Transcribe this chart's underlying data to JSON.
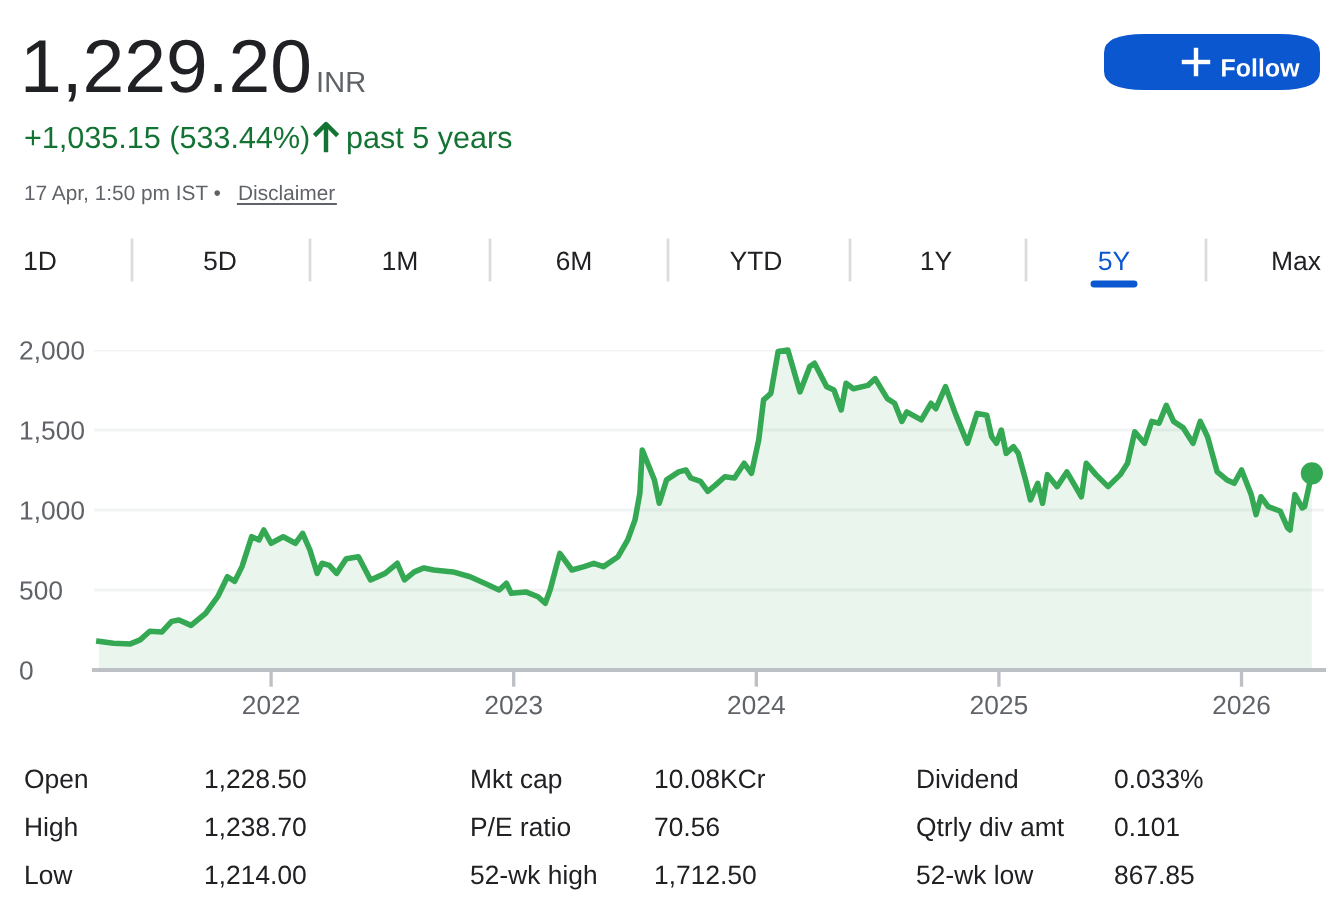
{
  "chart_data": {
    "type": "area",
    "title": "1,229.20",
    "annotations": [
      "INR",
      "+1,035.15 (533.44%)",
      "past 5 years",
      "17 Apr, 1:50 pm IST •",
      "Disclaimer",
      "Follow",
      "1D",
      "5D",
      "1M",
      "6M",
      "YTD",
      "1Y",
      "5Y",
      "Max",
      "Open",
      "1,228.50",
      "Mkt cap",
      "10.08KCr",
      "Dividend",
      "0.033%",
      "High",
      "1,238.70",
      "P/E ratio",
      "70.56",
      "Qtrly div amt",
      "0.101",
      "Low",
      "1,214.00",
      "52-wk high",
      "1,712.50",
      "52-wk low",
      "867.85"
    ],
    "x": [
      2021.29,
      2021.35,
      2021.42,
      2021.46,
      2021.5,
      2021.55,
      2021.59,
      2021.62,
      2021.67,
      2021.73,
      2021.78,
      2021.82,
      2021.85,
      2021.88,
      2021.92,
      2021.95,
      2021.97,
      2022.0,
      2022.05,
      2022.1,
      2022.13,
      2022.16,
      2022.19,
      2022.21,
      2022.24,
      2022.27,
      2022.31,
      2022.36,
      2022.41,
      2022.47,
      2022.52,
      2022.55,
      2022.59,
      2022.63,
      2022.67,
      2022.75,
      2022.82,
      2022.88,
      2022.94,
      2022.97,
      2022.99,
      2023.05,
      2023.1,
      2023.13,
      2023.15,
      2023.19,
      2023.24,
      2023.29,
      2023.33,
      2023.37,
      2023.43,
      2023.47,
      2023.5,
      2023.52,
      2023.53,
      2023.58,
      2023.6,
      2023.63,
      2023.68,
      2023.71,
      2023.73,
      2023.77,
      2023.8,
      2023.83,
      2023.87,
      2023.91,
      2023.95,
      2023.98,
      2024.01,
      2024.03,
      2024.06,
      2024.09,
      2024.13,
      2024.18,
      2024.22,
      2024.24,
      2024.29,
      2024.32,
      2024.35,
      2024.37,
      2024.4,
      2024.46,
      2024.49,
      2024.54,
      2024.57,
      2024.6,
      2024.62,
      2024.68,
      2024.72,
      2024.74,
      2024.78,
      2024.82,
      2024.87,
      2024.91,
      2024.95,
      2024.97,
      2024.99,
      2025.01,
      2025.03,
      2025.06,
      2025.08,
      2025.11,
      2025.13,
      2025.16,
      2025.18,
      2025.2,
      2025.24,
      2025.28,
      2025.34,
      2025.36,
      2025.4,
      2025.45,
      2025.5,
      2025.53,
      2025.56,
      2025.6,
      2025.63,
      2025.66,
      2025.69,
      2025.72,
      2025.76,
      2025.8,
      2025.83,
      2025.86,
      2025.9,
      2025.94,
      2025.97,
      2026.0,
      2026.04,
      2026.06,
      2026.08,
      2026.11,
      2026.16,
      2026.19,
      2026.2,
      2026.22,
      2026.25,
      2026.26,
      2026.29
    ],
    "series": [
      {
        "color": "#34a853",
        "values": [
          179,
          167,
          163,
          188,
          242,
          238,
          304,
          313,
          279,
          354,
          458,
          583,
          554,
          646,
          833,
          813,
          875,
          792,
          833,
          792,
          854,
          750,
          604,
          667,
          654,
          604,
          696,
          708,
          563,
          604,
          667,
          563,
          613,
          638,
          625,
          613,
          583,
          542,
          500,
          542,
          479,
          488,
          458,
          417,
          500,
          729,
          625,
          646,
          667,
          646,
          708,
          813,
          938,
          1104,
          1375,
          1188,
          1042,
          1188,
          1238,
          1250,
          1200,
          1179,
          1117,
          1154,
          1208,
          1200,
          1292,
          1229,
          1438,
          1688,
          1729,
          1990,
          2000,
          1738,
          1896,
          1917,
          1771,
          1750,
          1625,
          1792,
          1758,
          1779,
          1821,
          1696,
          1667,
          1554,
          1613,
          1563,
          1667,
          1633,
          1771,
          1604,
          1417,
          1604,
          1592,
          1458,
          1417,
          1500,
          1354,
          1396,
          1354,
          1188,
          1063,
          1167,
          1042,
          1221,
          1146,
          1238,
          1083,
          1292,
          1221,
          1146,
          1221,
          1292,
          1488,
          1417,
          1554,
          1542,
          1654,
          1554,
          1513,
          1417,
          1554,
          1458,
          1238,
          1188,
          1167,
          1250,
          1096,
          971,
          1083,
          1021,
          992,
          888,
          875,
          1096,
          1013,
          1021,
          1229
        ]
      }
    ],
    "xlim": [
      2021.27,
      2026.34
    ],
    "ylim": [
      0,
      2000
    ],
    "xticks": [
      2022,
      2023,
      2024,
      2025,
      2026
    ],
    "yticks": [
      0,
      500,
      {
        "value": 1000,
        "label": "1,000"
      },
      {
        "value": 1500,
        "label": "1,500"
      },
      {
        "value": 2000,
        "label": "2,000"
      }
    ],
    "grid": "y"
  }
}
